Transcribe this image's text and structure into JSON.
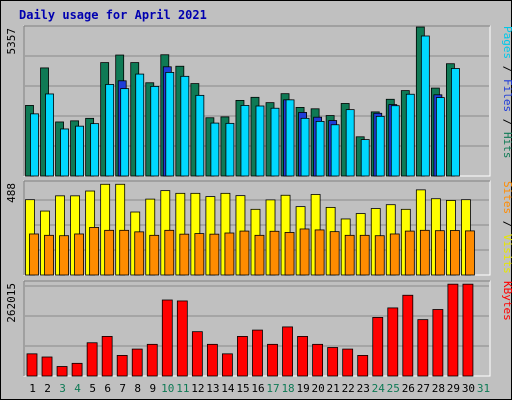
{
  "title": "Daily usage for April 2021",
  "colors": {
    "hits": "#0f7a55",
    "files": "#1f3cd8",
    "pages": "#00d8ff",
    "visits": "#ffff00",
    "sites": "#ff8c00",
    "kbytes": "#ff0000",
    "weekend_day": "#0f7a55",
    "weekday": "#000000",
    "title": "#0000b0"
  },
  "chart_data": [
    {
      "type": "bar",
      "panel": "hits-files-pages",
      "axis_max_label": "5357",
      "ylim": [
        0,
        5357
      ],
      "grid": true,
      "right_label_parts": [
        {
          "text": "Pages",
          "color": "#00c8e8"
        },
        {
          "text": " / ",
          "color": "#000000"
        },
        {
          "text": "Files",
          "color": "#1f3cd8"
        },
        {
          "text": " / ",
          "color": "#000000"
        },
        {
          "text": "Hits",
          "color": "#0f7a55"
        }
      ],
      "categories": [
        "1",
        "2",
        "3",
        "4",
        "5",
        "6",
        "7",
        "8",
        "9",
        "10",
        "11",
        "12",
        "13",
        "14",
        "15",
        "16",
        "17",
        "18",
        "19",
        "20",
        "21",
        "22",
        "23",
        "24",
        "25",
        "26",
        "27",
        "28",
        "29",
        "30",
        "31"
      ],
      "series": [
        {
          "name": "Hits",
          "values": [
            2520,
            3860,
            1930,
            1970,
            2060,
            4050,
            4320,
            4050,
            3330,
            4330,
            3920,
            3300,
            2080,
            2110,
            2700,
            2810,
            2620,
            2940,
            2450,
            2400,
            2160,
            2590,
            1400,
            2290,
            2740,
            3050,
            5320,
            3140,
            4010,
            null,
            null
          ]
        },
        {
          "name": "Files",
          "values": [
            null,
            null,
            null,
            null,
            null,
            null,
            3400,
            null,
            null,
            3900,
            null,
            null,
            null,
            null,
            null,
            null,
            null,
            2720,
            2270,
            2100,
            1980,
            null,
            null,
            2240,
            2550,
            null,
            null,
            2900,
            null,
            null,
            null
          ]
        },
        {
          "name": "Pages",
          "values": [
            2220,
            2930,
            1680,
            1780,
            1870,
            3270,
            3120,
            3640,
            3200,
            3700,
            3560,
            2880,
            1890,
            1880,
            2520,
            2500,
            2420,
            2720,
            2060,
            1950,
            1830,
            2370,
            1300,
            2130,
            2510,
            2920,
            5000,
            2800,
            3840,
            null,
            null
          ]
        }
      ]
    },
    {
      "type": "bar",
      "panel": "visits-sites",
      "axis_max_label": "488",
      "ylim": [
        0,
        488
      ],
      "grid": true,
      "right_label_parts": [
        {
          "text": "Sites",
          "color": "#ff8c00"
        },
        {
          "text": " / ",
          "color": "#000000"
        },
        {
          "text": "Visits",
          "color": "#e6e600"
        }
      ],
      "categories": [
        "1",
        "2",
        "3",
        "4",
        "5",
        "6",
        "7",
        "8",
        "9",
        "10",
        "11",
        "12",
        "13",
        "14",
        "15",
        "16",
        "17",
        "18",
        "19",
        "20",
        "21",
        "22",
        "23",
        "24",
        "25",
        "26",
        "27",
        "28",
        "29",
        "30",
        "31"
      ],
      "series": [
        {
          "name": "Visits",
          "values": [
            391,
            332,
            411,
            411,
            436,
            471,
            471,
            327,
            394,
            438,
            424,
            424,
            407,
            424,
            412,
            341,
            390,
            414,
            355,
            418,
            351,
            291,
            319,
            345,
            365,
            341,
            442,
            396,
            387,
            391,
            null
          ]
        },
        {
          "name": "Sites",
          "values": [
            213,
            206,
            204,
            213,
            247,
            232,
            232,
            224,
            206,
            232,
            212,
            215,
            212,
            218,
            228,
            206,
            227,
            221,
            239,
            234,
            225,
            206,
            206,
            204,
            213,
            228,
            232,
            230,
            231,
            229,
            null
          ]
        }
      ]
    },
    {
      "type": "bar",
      "panel": "kbytes",
      "axis_max_label": "262015",
      "ylim": [
        0,
        262015
      ],
      "grid": true,
      "right_label_parts": [
        {
          "text": "KBytes",
          "color": "#ff0000"
        }
      ],
      "categories": [
        "1",
        "2",
        "3",
        "4",
        "5",
        "6",
        "7",
        "8",
        "9",
        "10",
        "11",
        "12",
        "13",
        "14",
        "15",
        "16",
        "17",
        "18",
        "19",
        "20",
        "21",
        "22",
        "23",
        "24",
        "25",
        "26",
        "27",
        "28",
        "29",
        "30",
        "31"
      ],
      "series": [
        {
          "name": "KBytes",
          "values": [
            70,
            60,
            30,
            40,
            105,
            125,
            65,
            85,
            100,
            240,
            237,
            140,
            100,
            70,
            125,
            145,
            100,
            155,
            125,
            100,
            90,
            85,
            65,
            185,
            215,
            255,
            178,
            210,
            290,
            290,
            null
          ]
        }
      ]
    }
  ],
  "day_labels": [
    "1",
    "2",
    "3",
    "4",
    "5",
    "6",
    "7",
    "8",
    "9",
    "10",
    "11",
    "12",
    "13",
    "14",
    "15",
    "16",
    "17",
    "18",
    "19",
    "20",
    "21",
    "22",
    "23",
    "24",
    "25",
    "26",
    "27",
    "28",
    "29",
    "30",
    "31"
  ],
  "weekend_days": [
    3,
    4,
    10,
    11,
    17,
    18,
    24,
    25,
    31
  ]
}
